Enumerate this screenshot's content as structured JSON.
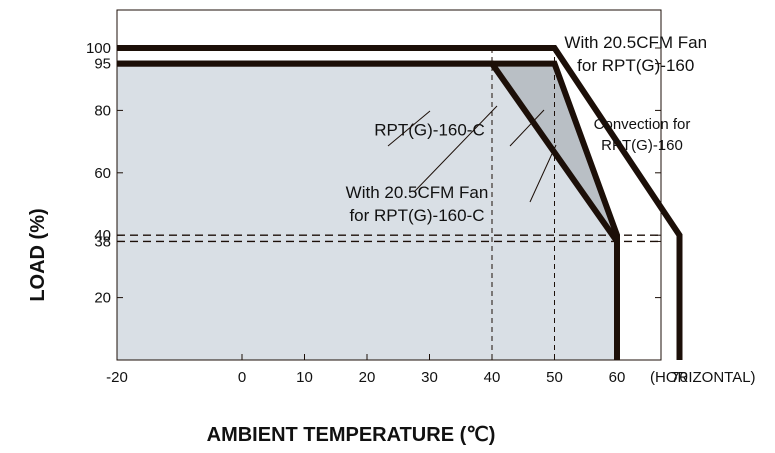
{
  "chart_data": {
    "type": "line",
    "xlabel": "AMBIENT TEMPERATURE (℃)",
    "ylabel": "LOAD (%)",
    "x_unit_note": "(HORIZONTAL)",
    "xlim": [
      -20,
      67
    ],
    "ylim": [
      0,
      110
    ],
    "x_ticks": [
      -20,
      0,
      10,
      20,
      30,
      40,
      50,
      60,
      70
    ],
    "y_ticks": [
      20,
      38,
      40,
      60,
      80,
      95,
      100
    ],
    "grid": false,
    "series": [
      {
        "name": "Convection for RPT(G)-160",
        "points": [
          [
            -20,
            100
          ],
          [
            50,
            100
          ],
          [
            70,
            40
          ],
          [
            70,
            0
          ]
        ]
      },
      {
        "name": "With 20.5CFM Fan for RPT(G)-160",
        "points": [
          [
            -20,
            100
          ],
          [
            50,
            100
          ],
          [
            70,
            40
          ],
          [
            70,
            0
          ]
        ]
      },
      {
        "name": "RPT(G)-160-C",
        "points": [
          [
            -20,
            95
          ],
          [
            40,
            95
          ],
          [
            60,
            38
          ],
          [
            60,
            0
          ]
        ]
      },
      {
        "name": "With 20.5CFM Fan for RPT(G)-160-C",
        "points": [
          [
            -20,
            95
          ],
          [
            50,
            95
          ],
          [
            60,
            40
          ],
          [
            60,
            0
          ]
        ]
      }
    ],
    "reference_lines": {
      "horizontal": [
        40,
        38
      ],
      "vertical": [
        40,
        50
      ]
    },
    "annotations": [
      {
        "lines": [
          "With 20.5CFM Fan",
          "for RPT(G)-160"
        ],
        "x": 63,
        "y": 100
      },
      {
        "lines": [
          "Convection for",
          "RPT(G)-160"
        ],
        "x": 64,
        "y": 74
      },
      {
        "lines": [
          "RPT(G)-160-C"
        ],
        "x": 30,
        "y": 72
      },
      {
        "lines": [
          "With 20.5CFM Fan",
          "for RPT(G)-160-C"
        ],
        "x": 28,
        "y": 52
      }
    ],
    "colors": {
      "fill": "#d9dfe5",
      "band": "#b9bfc5",
      "line": "#1c0f08"
    }
  }
}
